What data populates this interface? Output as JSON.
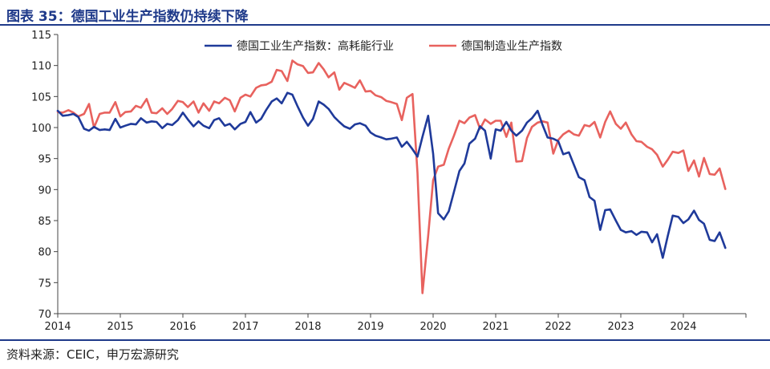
{
  "title": "图表 35：德国工业生产指数仍持续下降",
  "source": "资料来源：CEIC，申万宏源研究",
  "colors": {
    "series_energy": "#1f3a9a",
    "series_mfg": "#e8625e",
    "accent": "#1f3a8a"
  },
  "chart_data": {
    "type": "line",
    "title": "",
    "xlabel": "",
    "ylabel": "",
    "ylim": [
      70,
      115
    ],
    "yticks": [
      70,
      75,
      80,
      85,
      90,
      95,
      100,
      105,
      110,
      115
    ],
    "xlim": [
      2014.0,
      2025.0
    ],
    "xticks": [
      "2014",
      "2015",
      "2016",
      "2017",
      "2018",
      "2019",
      "2020",
      "2021",
      "2022",
      "2023",
      "2024"
    ],
    "legend_position": "top",
    "grid": false,
    "series": [
      {
        "name": "德国工业生产指数：高耗能行业",
        "color": "#1f3a9a",
        "points": [
          [
            2014.0,
            102.7
          ],
          [
            2014.08,
            101.9
          ],
          [
            2014.17,
            102.0
          ],
          [
            2014.25,
            102.2
          ],
          [
            2014.33,
            101.7
          ],
          [
            2014.42,
            99.8
          ],
          [
            2014.5,
            99.5
          ],
          [
            2014.58,
            100.1
          ],
          [
            2014.67,
            99.6
          ],
          [
            2014.75,
            99.7
          ],
          [
            2014.83,
            99.6
          ],
          [
            2014.92,
            101.4
          ],
          [
            2015.0,
            100.0
          ],
          [
            2015.08,
            100.3
          ],
          [
            2015.17,
            100.6
          ],
          [
            2015.25,
            100.5
          ],
          [
            2015.33,
            101.5
          ],
          [
            2015.42,
            100.8
          ],
          [
            2015.5,
            101.0
          ],
          [
            2015.58,
            100.9
          ],
          [
            2015.67,
            99.9
          ],
          [
            2015.75,
            100.6
          ],
          [
            2015.83,
            100.4
          ],
          [
            2015.92,
            101.2
          ],
          [
            2016.0,
            102.4
          ],
          [
            2016.08,
            101.3
          ],
          [
            2016.17,
            100.2
          ],
          [
            2016.25,
            101.0
          ],
          [
            2016.33,
            100.3
          ],
          [
            2016.42,
            99.9
          ],
          [
            2016.5,
            101.2
          ],
          [
            2016.58,
            101.5
          ],
          [
            2016.67,
            100.3
          ],
          [
            2016.75,
            100.6
          ],
          [
            2016.83,
            99.7
          ],
          [
            2016.92,
            100.6
          ],
          [
            2017.0,
            100.9
          ],
          [
            2017.08,
            102.5
          ],
          [
            2017.17,
            100.8
          ],
          [
            2017.25,
            101.4
          ],
          [
            2017.33,
            102.8
          ],
          [
            2017.42,
            104.2
          ],
          [
            2017.5,
            104.7
          ],
          [
            2017.58,
            103.9
          ],
          [
            2017.67,
            105.6
          ],
          [
            2017.75,
            105.3
          ],
          [
            2017.83,
            103.5
          ],
          [
            2017.92,
            101.6
          ],
          [
            2018.0,
            100.3
          ],
          [
            2018.08,
            101.4
          ],
          [
            2018.17,
            104.2
          ],
          [
            2018.25,
            103.7
          ],
          [
            2018.33,
            103.0
          ],
          [
            2018.42,
            101.7
          ],
          [
            2018.5,
            100.9
          ],
          [
            2018.58,
            100.2
          ],
          [
            2018.67,
            99.8
          ],
          [
            2018.75,
            100.5
          ],
          [
            2018.83,
            100.7
          ],
          [
            2018.92,
            100.3
          ],
          [
            2019.0,
            99.2
          ],
          [
            2019.08,
            98.7
          ],
          [
            2019.17,
            98.4
          ],
          [
            2019.25,
            98.1
          ],
          [
            2019.33,
            98.2
          ],
          [
            2019.42,
            98.4
          ],
          [
            2019.5,
            96.9
          ],
          [
            2019.58,
            97.7
          ],
          [
            2019.67,
            96.5
          ],
          [
            2019.75,
            95.3
          ],
          [
            2019.83,
            98.5
          ],
          [
            2019.92,
            101.9
          ],
          [
            2020.0,
            95.8
          ],
          [
            2020.08,
            86.2
          ],
          [
            2020.17,
            85.2
          ],
          [
            2020.25,
            86.5
          ],
          [
            2020.33,
            89.5
          ],
          [
            2020.42,
            93.0
          ],
          [
            2020.5,
            94.2
          ],
          [
            2020.58,
            97.4
          ],
          [
            2020.67,
            98.2
          ],
          [
            2020.75,
            100.2
          ],
          [
            2020.83,
            99.5
          ],
          [
            2020.92,
            95.0
          ],
          [
            2021.0,
            99.7
          ],
          [
            2021.08,
            99.5
          ],
          [
            2021.17,
            100.9
          ],
          [
            2021.25,
            99.5
          ],
          [
            2021.33,
            98.7
          ],
          [
            2021.42,
            99.5
          ],
          [
            2021.5,
            100.8
          ],
          [
            2021.58,
            101.5
          ],
          [
            2021.67,
            102.7
          ],
          [
            2021.75,
            100.4
          ],
          [
            2021.83,
            98.4
          ],
          [
            2021.92,
            98.2
          ],
          [
            2022.0,
            97.8
          ],
          [
            2022.08,
            95.7
          ],
          [
            2022.17,
            96.0
          ],
          [
            2022.25,
            94.0
          ],
          [
            2022.33,
            92.0
          ],
          [
            2022.42,
            91.5
          ],
          [
            2022.5,
            88.8
          ],
          [
            2022.58,
            88.2
          ],
          [
            2022.67,
            83.5
          ],
          [
            2022.75,
            86.7
          ],
          [
            2022.83,
            86.8
          ],
          [
            2022.92,
            85.0
          ],
          [
            2023.0,
            83.5
          ],
          [
            2023.08,
            83.1
          ],
          [
            2023.17,
            83.3
          ],
          [
            2023.25,
            82.7
          ],
          [
            2023.33,
            83.2
          ],
          [
            2023.42,
            83.1
          ],
          [
            2023.5,
            81.5
          ],
          [
            2023.58,
            82.8
          ],
          [
            2023.67,
            79.0
          ],
          [
            2023.75,
            82.5
          ],
          [
            2023.83,
            85.8
          ],
          [
            2023.92,
            85.6
          ],
          [
            2024.0,
            84.6
          ],
          [
            2024.08,
            85.2
          ],
          [
            2024.17,
            86.6
          ],
          [
            2024.25,
            85.1
          ],
          [
            2024.33,
            84.5
          ],
          [
            2024.42,
            81.9
          ],
          [
            2024.5,
            81.7
          ],
          [
            2024.58,
            83.1
          ],
          [
            2024.67,
            80.6
          ]
        ]
      },
      {
        "name": "德国制造业生产指数",
        "color": "#e8625e",
        "points": [
          [
            2014.0,
            102.5
          ],
          [
            2014.08,
            102.4
          ],
          [
            2014.17,
            102.8
          ],
          [
            2014.25,
            102.4
          ],
          [
            2014.33,
            101.8
          ],
          [
            2014.42,
            102.2
          ],
          [
            2014.5,
            103.8
          ],
          [
            2014.58,
            100.0
          ],
          [
            2014.67,
            102.2
          ],
          [
            2014.75,
            102.4
          ],
          [
            2014.83,
            102.4
          ],
          [
            2014.92,
            104.1
          ],
          [
            2015.0,
            101.8
          ],
          [
            2015.08,
            102.5
          ],
          [
            2015.17,
            102.6
          ],
          [
            2015.25,
            103.5
          ],
          [
            2015.33,
            103.2
          ],
          [
            2015.42,
            104.6
          ],
          [
            2015.5,
            102.4
          ],
          [
            2015.58,
            102.3
          ],
          [
            2015.67,
            103.1
          ],
          [
            2015.75,
            102.2
          ],
          [
            2015.83,
            103.0
          ],
          [
            2015.92,
            104.3
          ],
          [
            2016.0,
            104.1
          ],
          [
            2016.08,
            103.3
          ],
          [
            2016.17,
            104.2
          ],
          [
            2016.25,
            102.4
          ],
          [
            2016.33,
            103.9
          ],
          [
            2016.42,
            102.7
          ],
          [
            2016.5,
            104.2
          ],
          [
            2016.58,
            103.9
          ],
          [
            2016.67,
            104.8
          ],
          [
            2016.75,
            104.4
          ],
          [
            2016.83,
            102.6
          ],
          [
            2016.92,
            104.8
          ],
          [
            2017.0,
            105.3
          ],
          [
            2017.08,
            105.0
          ],
          [
            2017.17,
            106.4
          ],
          [
            2017.25,
            106.8
          ],
          [
            2017.33,
            106.9
          ],
          [
            2017.42,
            107.4
          ],
          [
            2017.5,
            109.3
          ],
          [
            2017.58,
            109.1
          ],
          [
            2017.67,
            107.5
          ],
          [
            2017.75,
            110.8
          ],
          [
            2017.83,
            110.2
          ],
          [
            2017.92,
            109.9
          ],
          [
            2018.0,
            108.8
          ],
          [
            2018.08,
            108.9
          ],
          [
            2018.17,
            110.4
          ],
          [
            2018.25,
            109.4
          ],
          [
            2018.33,
            108.1
          ],
          [
            2018.42,
            108.9
          ],
          [
            2018.5,
            106.1
          ],
          [
            2018.58,
            107.2
          ],
          [
            2018.67,
            106.8
          ],
          [
            2018.75,
            106.4
          ],
          [
            2018.83,
            107.6
          ],
          [
            2018.92,
            105.8
          ],
          [
            2019.0,
            105.9
          ],
          [
            2019.08,
            105.2
          ],
          [
            2019.17,
            104.9
          ],
          [
            2019.25,
            104.3
          ],
          [
            2019.33,
            104.1
          ],
          [
            2019.42,
            103.8
          ],
          [
            2019.5,
            101.2
          ],
          [
            2019.58,
            104.8
          ],
          [
            2019.67,
            105.4
          ],
          [
            2019.75,
            92.7
          ],
          [
            2019.83,
            73.3
          ],
          [
            2019.92,
            82.5
          ],
          [
            2020.0,
            91.5
          ],
          [
            2020.08,
            93.7
          ],
          [
            2020.17,
            94.0
          ],
          [
            2020.25,
            96.6
          ],
          [
            2020.33,
            98.6
          ],
          [
            2020.42,
            101.1
          ],
          [
            2020.5,
            100.7
          ],
          [
            2020.58,
            101.6
          ],
          [
            2020.67,
            102.0
          ],
          [
            2020.75,
            99.8
          ],
          [
            2020.83,
            101.3
          ],
          [
            2020.92,
            100.6
          ],
          [
            2021.0,
            101.1
          ],
          [
            2021.08,
            101.1
          ],
          [
            2021.17,
            98.5
          ],
          [
            2021.25,
            100.8
          ],
          [
            2021.33,
            94.5
          ],
          [
            2021.42,
            94.6
          ],
          [
            2021.5,
            98.3
          ],
          [
            2021.58,
            100.1
          ],
          [
            2021.67,
            100.8
          ],
          [
            2021.75,
            101.0
          ],
          [
            2021.83,
            100.8
          ],
          [
            2021.92,
            95.8
          ],
          [
            2022.0,
            98.0
          ],
          [
            2022.08,
            98.9
          ],
          [
            2022.17,
            99.5
          ],
          [
            2022.25,
            98.9
          ],
          [
            2022.33,
            98.7
          ],
          [
            2022.42,
            100.4
          ],
          [
            2022.5,
            100.2
          ],
          [
            2022.58,
            100.9
          ],
          [
            2022.67,
            98.4
          ],
          [
            2022.75,
            100.9
          ],
          [
            2022.83,
            102.6
          ],
          [
            2022.92,
            100.6
          ],
          [
            2023.0,
            99.8
          ],
          [
            2023.08,
            100.8
          ],
          [
            2023.17,
            98.9
          ],
          [
            2023.25,
            97.8
          ],
          [
            2023.33,
            97.7
          ],
          [
            2023.42,
            96.9
          ],
          [
            2023.5,
            96.5
          ],
          [
            2023.58,
            95.6
          ],
          [
            2023.67,
            93.7
          ],
          [
            2023.75,
            94.8
          ],
          [
            2023.83,
            96.1
          ],
          [
            2023.92,
            95.9
          ],
          [
            2024.0,
            96.3
          ],
          [
            2024.08,
            93.0
          ],
          [
            2024.17,
            94.7
          ],
          [
            2024.25,
            92.1
          ],
          [
            2024.33,
            95.1
          ],
          [
            2024.42,
            92.5
          ],
          [
            2024.5,
            92.4
          ],
          [
            2024.58,
            93.4
          ],
          [
            2024.67,
            90.1
          ]
        ]
      }
    ]
  }
}
